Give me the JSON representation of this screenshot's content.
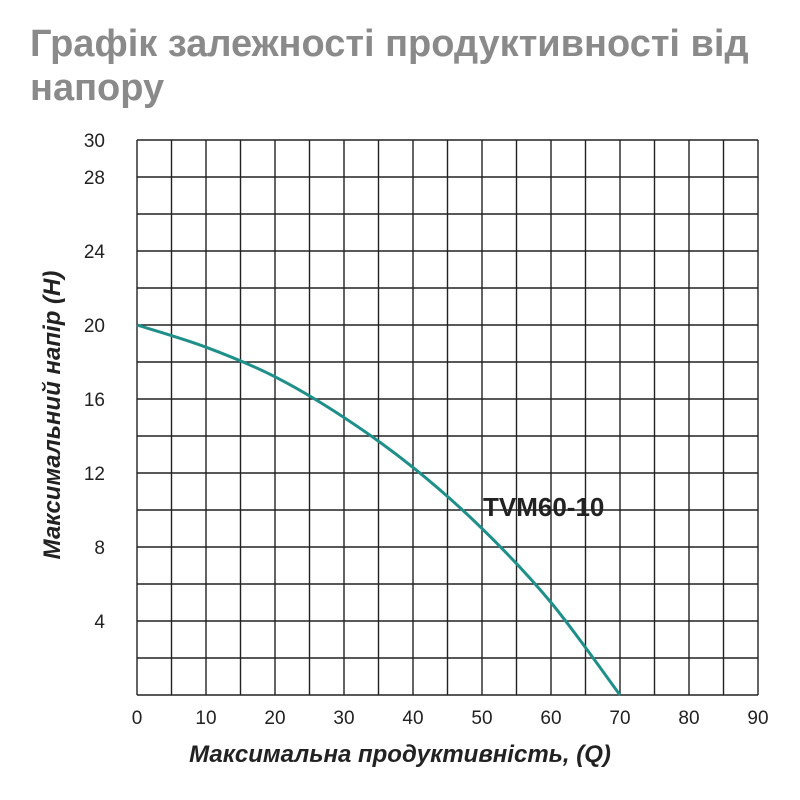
{
  "title": "Графік залежності продуктивності від напору",
  "chart_data": {
    "type": "line",
    "xlabel": "Максимальна продуктивність, (Q)",
    "ylabel": "Максимальний напір (H)",
    "xlim": [
      0,
      90
    ],
    "ylim": [
      0,
      30
    ],
    "x_ticks": [
      0,
      10,
      20,
      30,
      40,
      50,
      60,
      70,
      80,
      90
    ],
    "y_ticks": [
      4,
      8,
      12,
      16,
      20,
      24,
      28,
      30
    ],
    "grid": true,
    "series": [
      {
        "name": "TVM60-10",
        "color": "#1f8f8a",
        "x": [
          0,
          10,
          20,
          30,
          40,
          50,
          60,
          70
        ],
        "y": [
          20,
          18.8,
          17.2,
          15.0,
          12.3,
          9.0,
          5.0,
          0
        ]
      }
    ]
  }
}
